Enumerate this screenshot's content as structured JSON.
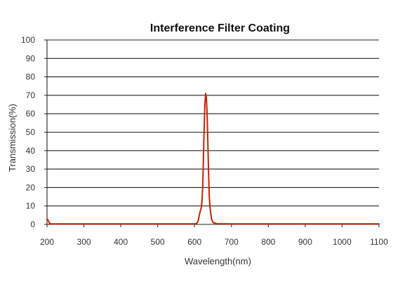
{
  "chart_data": {
    "type": "line",
    "title": "Interference Filter Coating",
    "xlabel": "Wavelength(nm)",
    "ylabel": "Transmission(%)",
    "xlim": [
      200,
      1100
    ],
    "ylim": [
      0,
      100
    ],
    "x_ticks": [
      200,
      300,
      400,
      500,
      600,
      700,
      800,
      900,
      1000,
      1100
    ],
    "y_ticks": [
      0,
      10,
      20,
      30,
      40,
      50,
      60,
      70,
      80,
      90,
      100
    ],
    "grid": "horizontal",
    "line_color": "#cc2200",
    "grid_color": "#222222",
    "series": [
      {
        "x": [
          200,
          202,
          204,
          206,
          208,
          212,
          220,
          300,
          400,
          500,
          580,
          600,
          606,
          610,
          614,
          618,
          620,
          622,
          624,
          626,
          628,
          630,
          632,
          634,
          636,
          638,
          640,
          642,
          644,
          646,
          650,
          660,
          700,
          800,
          900,
          1000,
          1100
        ],
        "y": [
          3,
          2.5,
          1.8,
          1,
          0.5,
          0.3,
          0.3,
          0.3,
          0.3,
          0.3,
          0.3,
          0.3,
          0.5,
          2,
          6,
          9,
          12,
          20,
          35,
          52,
          65,
          71,
          69,
          60,
          45,
          28,
          15,
          9,
          6,
          3,
          1,
          0.4,
          0.3,
          0.3,
          0.3,
          0.3,
          0.3
        ]
      }
    ]
  }
}
